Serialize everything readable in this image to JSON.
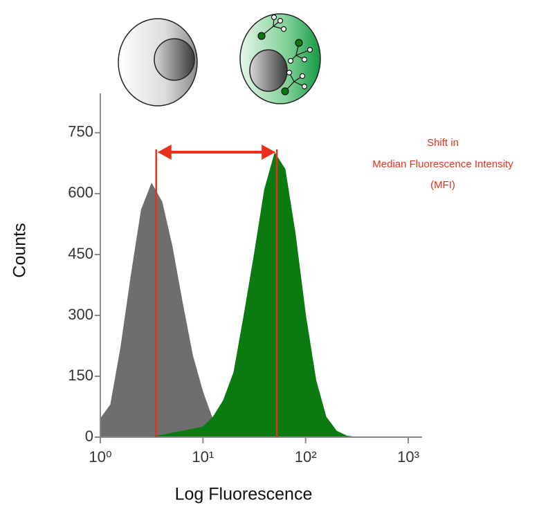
{
  "chart_data": {
    "type": "area",
    "x_label": "Log Fluorescence",
    "y_label": "Counts",
    "x_scale": "log",
    "x": [
      1,
      1.26,
      1.58,
      2,
      2.51,
      3.16,
      3.98,
      5.01,
      6.31,
      7.94,
      10,
      12.6,
      15.8,
      20,
      25.1,
      31.6,
      39.8,
      50.1,
      63.1,
      79.4,
      100,
      126,
      158,
      200,
      251,
      316
    ],
    "series": [
      {
        "color": "#6e6e6e",
        "values": [
          45,
          80,
          220,
          400,
          560,
          625,
          580,
          470,
          330,
          200,
          110,
          40,
          10,
          0,
          0,
          0,
          0,
          0,
          0,
          0,
          0,
          0,
          0,
          0,
          0,
          0
        ]
      },
      {
        "color": "#0b7a10",
        "values": [
          0,
          0,
          0,
          0,
          0,
          0,
          5,
          10,
          15,
          20,
          25,
          50,
          90,
          160,
          300,
          450,
          610,
          700,
          660,
          500,
          300,
          140,
          50,
          15,
          3,
          0
        ]
      }
    ],
    "xlim": [
      1,
      1000
    ],
    "xticks": [
      {
        "value": 1,
        "label": "10⁰"
      },
      {
        "value": 10,
        "label": "10¹"
      },
      {
        "value": 100,
        "label": "10²"
      },
      {
        "value": 1000,
        "label": "10³"
      }
    ],
    "ylim": [
      0,
      847
    ],
    "yticks": [
      0,
      150,
      300,
      450,
      600,
      750
    ],
    "medians": [
      3.5,
      52.5
    ],
    "marker_color": "#e8301c",
    "annotation": [
      "Shift in",
      "Median Fluorescence Intensity",
      "(MFI)"
    ]
  }
}
